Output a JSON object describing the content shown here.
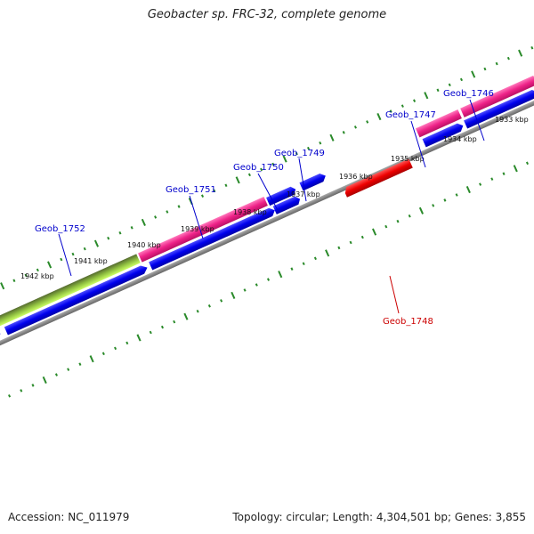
{
  "title": "Geobacter sp. FRC-32, complete genome",
  "footer": {
    "accession": "Accession: NC_011979",
    "summary": "Topology: circular; Length: 4,304,501 bp; Genes: 3,855"
  },
  "colors": {
    "forward_gene": "#0000ee",
    "cds_magenta": "#ee2288",
    "cds_green": "#99ee33",
    "cds_olive": "#556b2f",
    "reverse_gene": "#ee0000",
    "backbone": "#808080",
    "tick": "#2a8a2a",
    "label_blue": "#0000cc",
    "label_red": "#cc0000"
  },
  "scale_labels": [
    "1933 kbp",
    "1934 kbp",
    "1935 kbp",
    "1936 kbp",
    "1937 kbp",
    "1938 kbp",
    "1939 kbp",
    "1940 kbp",
    "1941 kbp",
    "1942 kbp"
  ],
  "gene_labels": [
    {
      "name": "Geob_1746",
      "color": "blue"
    },
    {
      "name": "Geob_1747",
      "color": "blue"
    },
    {
      "name": "Geob_1749",
      "color": "blue"
    },
    {
      "name": "Geob_1750",
      "color": "blue"
    },
    {
      "name": "Geob_1751",
      "color": "blue"
    },
    {
      "name": "Geob_1752",
      "color": "blue"
    },
    {
      "name": "Geob_1748",
      "color": "red"
    }
  ]
}
